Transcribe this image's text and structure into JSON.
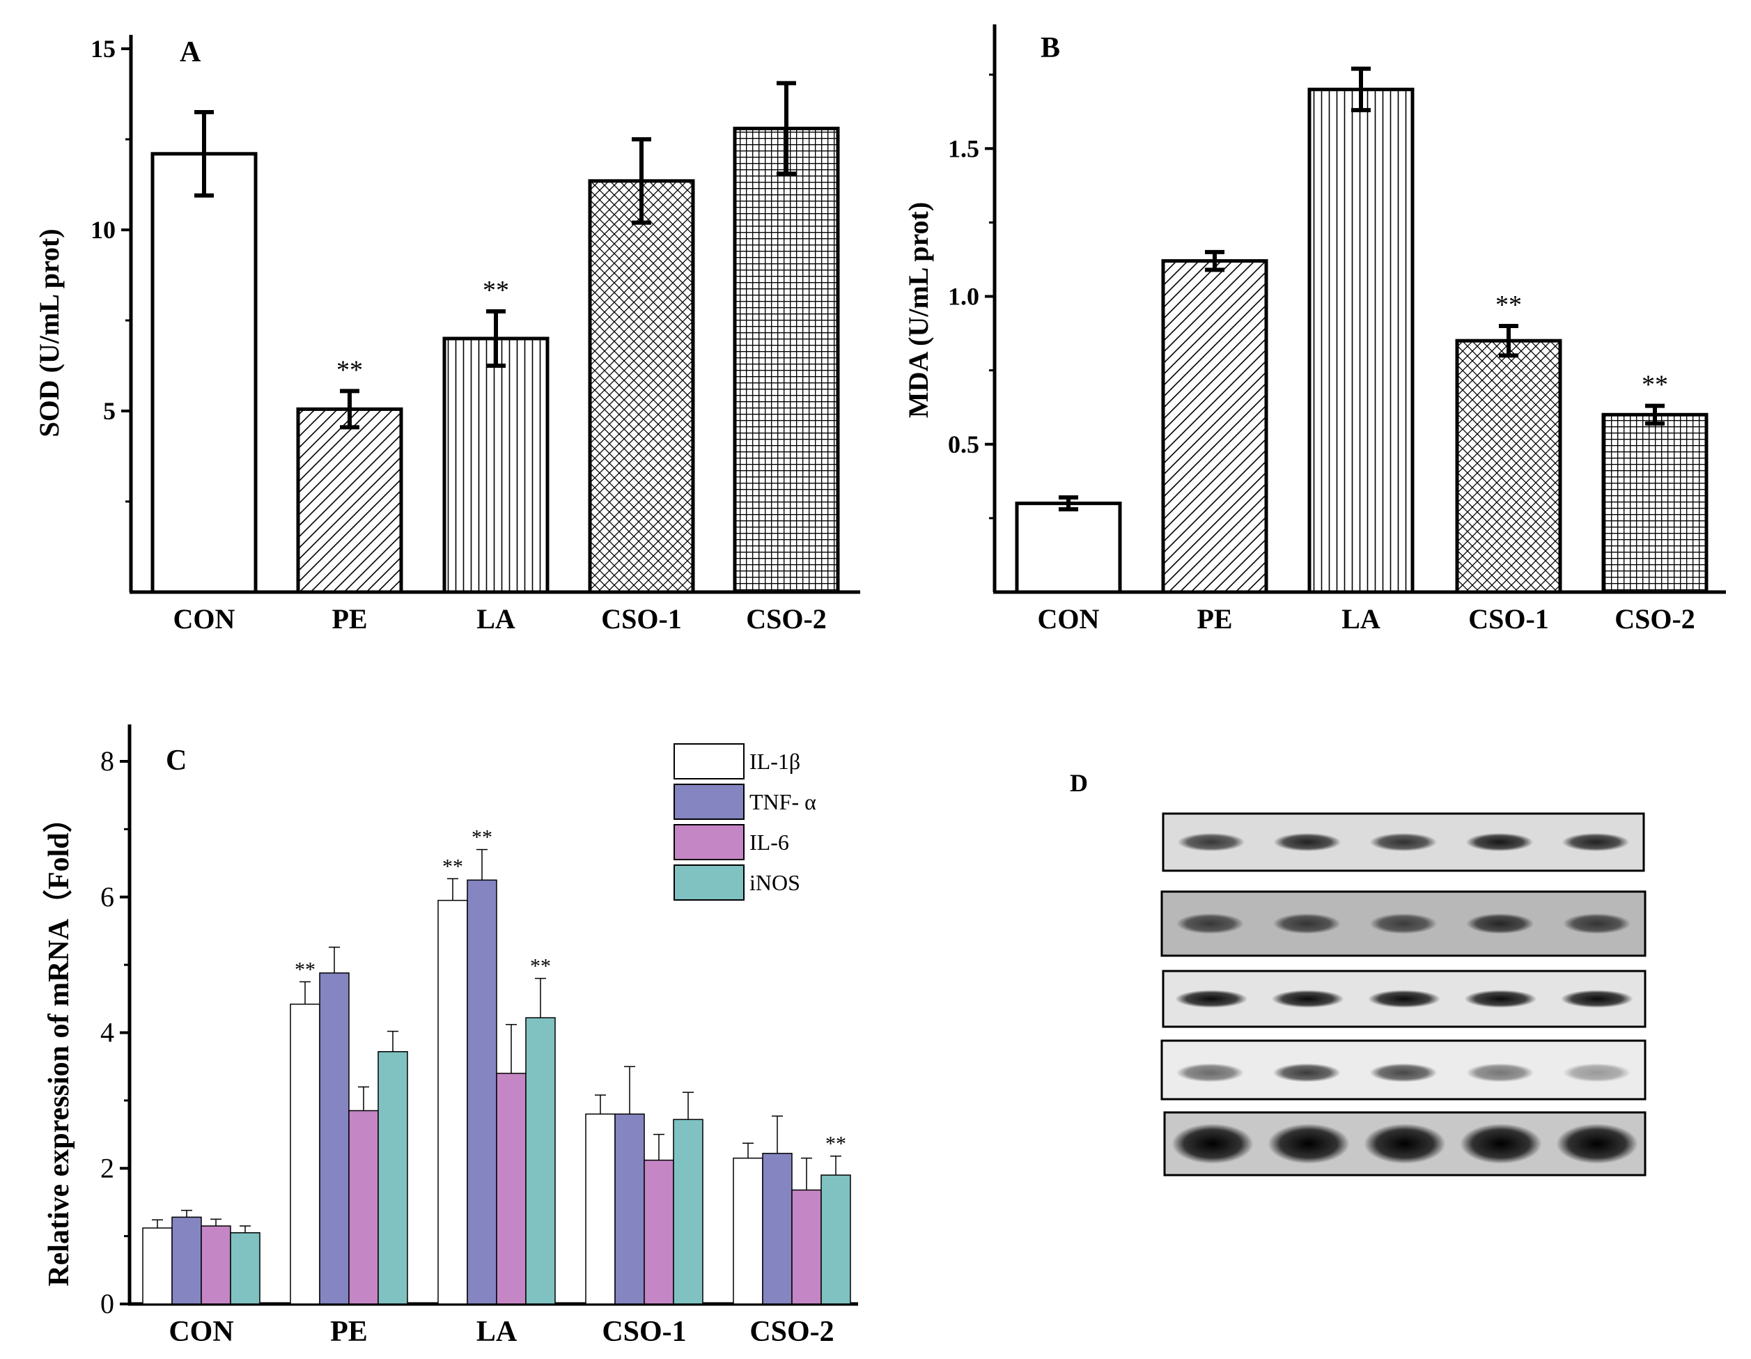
{
  "chart_data": [
    {
      "panel": "A",
      "type": "bar",
      "ylabel": "SOD (U/mL prot)",
      "ylim": [
        0,
        15
      ],
      "yticks": [
        5,
        10,
        15
      ],
      "categories": [
        "CON",
        "PE",
        "LA",
        "CSO-1",
        "CSO-2"
      ],
      "values": [
        12.1,
        5.05,
        7.0,
        11.35,
        12.8
      ],
      "errors": [
        1.15,
        0.5,
        0.75,
        1.15,
        1.25
      ],
      "patterns": [
        "none",
        "diag",
        "vlines",
        "xhatch",
        "grid"
      ],
      "annotations": [
        "",
        "**",
        "**",
        "",
        ""
      ]
    },
    {
      "panel": "B",
      "type": "bar",
      "ylabel": "MDA (U/mL prot)",
      "ylim": [
        0,
        1.92
      ],
      "yticks": [
        0.5,
        1.0,
        1.5
      ],
      "ytick_labels": [
        "0.5",
        "1.0",
        "1.5"
      ],
      "categories": [
        "CON",
        "PE",
        "LA",
        "CSO-1",
        "CSO-2"
      ],
      "values": [
        0.3,
        1.12,
        1.7,
        0.85,
        0.6
      ],
      "errors": [
        0.02,
        0.03,
        0.07,
        0.05,
        0.03
      ],
      "patterns": [
        "none",
        "diag",
        "vlines",
        "xhatch",
        "grid"
      ],
      "annotations": [
        "",
        "",
        "",
        "**",
        "**"
      ]
    },
    {
      "panel": "C",
      "type": "bar",
      "ylabel": "Relative expression of mRNA（Fold）",
      "ylim": [
        0,
        8
      ],
      "yticks": [
        0,
        2,
        4,
        6,
        8
      ],
      "categories": [
        "CON",
        "PE",
        "LA",
        "CSO-1",
        "CSO-2"
      ],
      "series": [
        {
          "name": "IL-1β",
          "color": "#ffffff",
          "values": [
            1.12,
            4.42,
            5.95,
            2.8,
            2.15
          ],
          "errors": [
            0.12,
            0.33,
            0.32,
            0.28,
            0.22
          ]
        },
        {
          "name": "TNF- α",
          "color": "#8585c2",
          "values": [
            1.28,
            4.88,
            6.25,
            2.8,
            2.22
          ],
          "errors": [
            0.1,
            0.38,
            0.45,
            0.7,
            0.55
          ]
        },
        {
          "name": "IL-6",
          "color": "#c586c5",
          "values": [
            1.15,
            2.85,
            3.4,
            2.12,
            1.68
          ],
          "errors": [
            0.1,
            0.35,
            0.72,
            0.38,
            0.47
          ]
        },
        {
          "name": "iNOS",
          "color": "#80c2c2",
          "values": [
            1.05,
            3.72,
            4.22,
            2.72,
            1.9
          ],
          "errors": [
            0.1,
            0.3,
            0.58,
            0.4,
            0.28
          ]
        }
      ],
      "annotations": [
        {
          "category": "PE",
          "series": "IL-1β",
          "text": "**"
        },
        {
          "category": "LA",
          "series": "IL-1β",
          "text": "**"
        },
        {
          "category": "LA",
          "series": "TNF- α",
          "text": "**"
        },
        {
          "category": "LA",
          "series": "iNOS",
          "text": "**"
        },
        {
          "category": "CSO-2",
          "series": "iNOS",
          "text": "**"
        }
      ]
    }
  ],
  "blot_panel": {
    "label": "D",
    "lanes": 5,
    "rows": [
      {
        "intensity": [
          0.75,
          0.85,
          0.78,
          0.9,
          0.85
        ],
        "band_width": 0.7
      },
      {
        "intensity": [
          0.7,
          0.72,
          0.68,
          0.8,
          0.72
        ],
        "band_width": 0.7
      },
      {
        "intensity": [
          0.95,
          0.95,
          0.95,
          0.95,
          0.95
        ],
        "band_width": 0.75
      },
      {
        "intensity": [
          0.55,
          0.75,
          0.7,
          0.5,
          0.35
        ],
        "band_width": 0.7
      },
      {
        "intensity": [
          1.0,
          1.0,
          1.0,
          1.0,
          1.0
        ],
        "band_width": 0.85
      }
    ]
  }
}
